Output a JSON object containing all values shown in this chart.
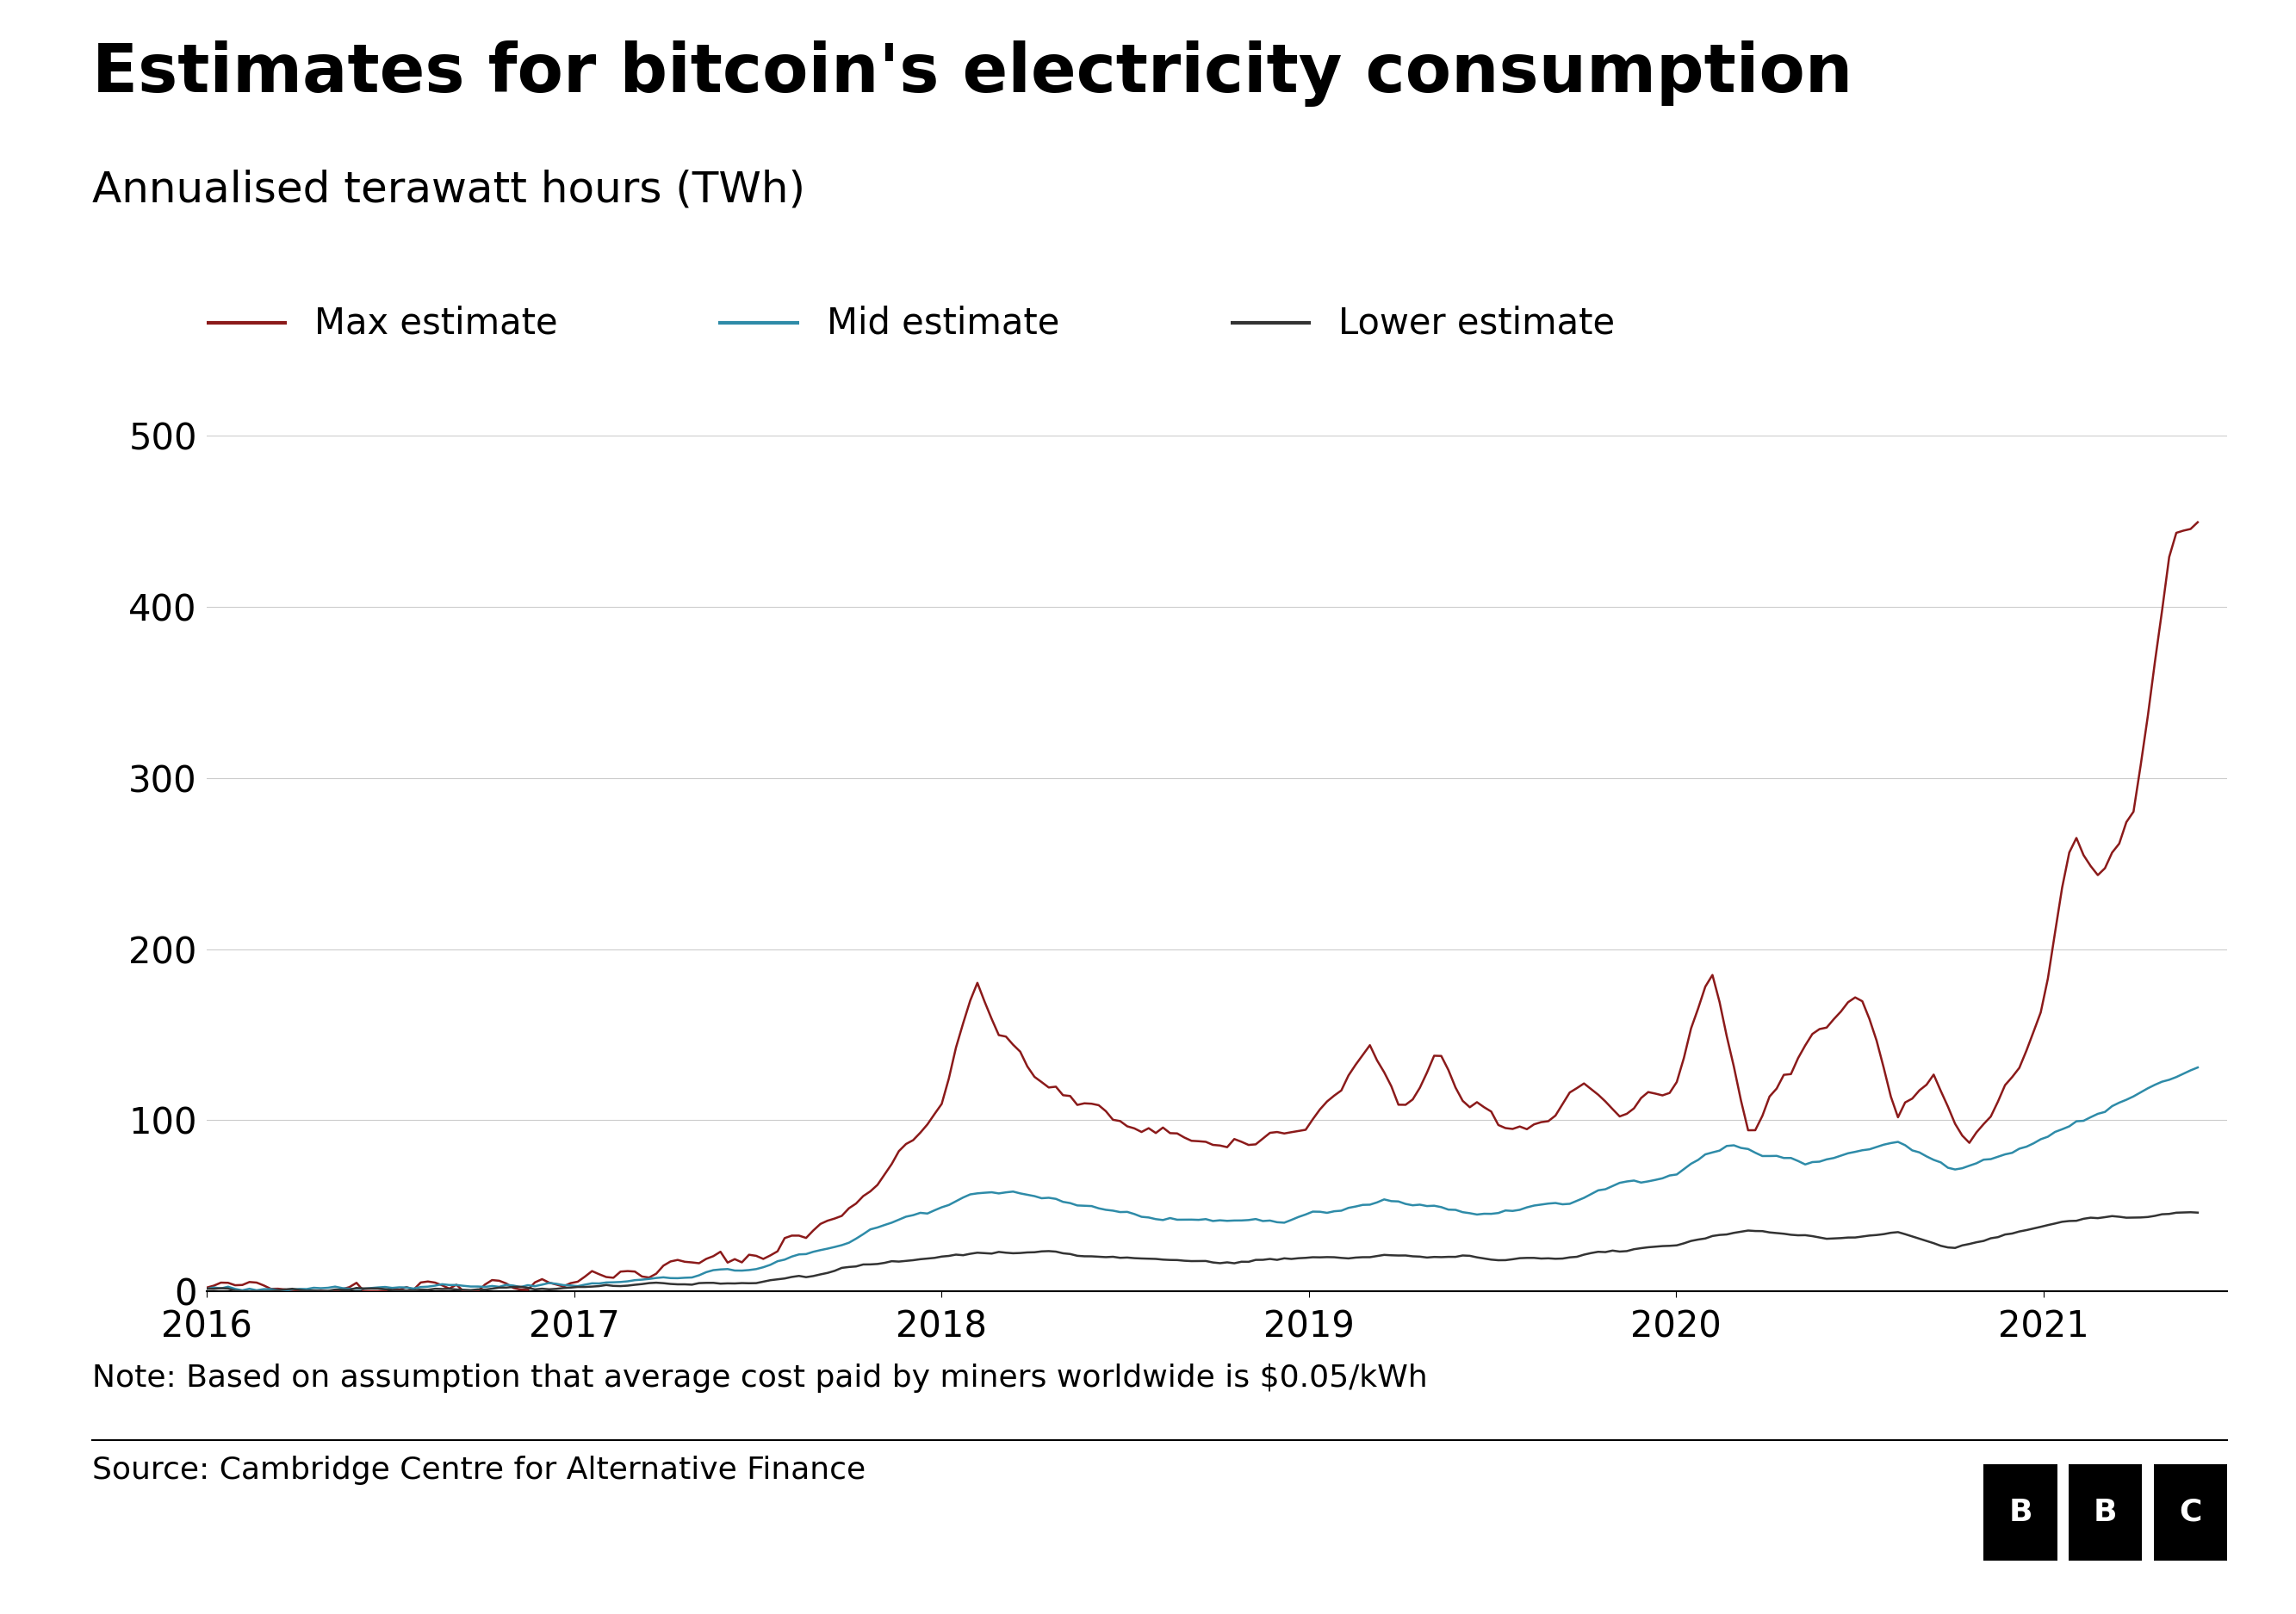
{
  "title": "Estimates for bitcoin's electricity consumption",
  "subtitle": "Annualised terawatt hours (TWh)",
  "note": "Note: Based on assumption that average cost paid by miners worldwide is $0.05/kWh",
  "source": "Source: Cambridge Centre for Alternative Finance",
  "legend_labels": [
    "Max estimate",
    "Mid estimate",
    "Lower estimate"
  ],
  "max_color": "#8B1A1A",
  "mid_color": "#2E8BA8",
  "low_color": "#333333",
  "ylim": [
    0,
    500
  ],
  "yticks": [
    0,
    100,
    200,
    300,
    400,
    500
  ],
  "background_color": "#FFFFFF",
  "grid_color": "#CCCCCC",
  "title_fontsize": 56,
  "subtitle_fontsize": 36,
  "axis_fontsize": 30,
  "legend_fontsize": 30,
  "note_fontsize": 26
}
